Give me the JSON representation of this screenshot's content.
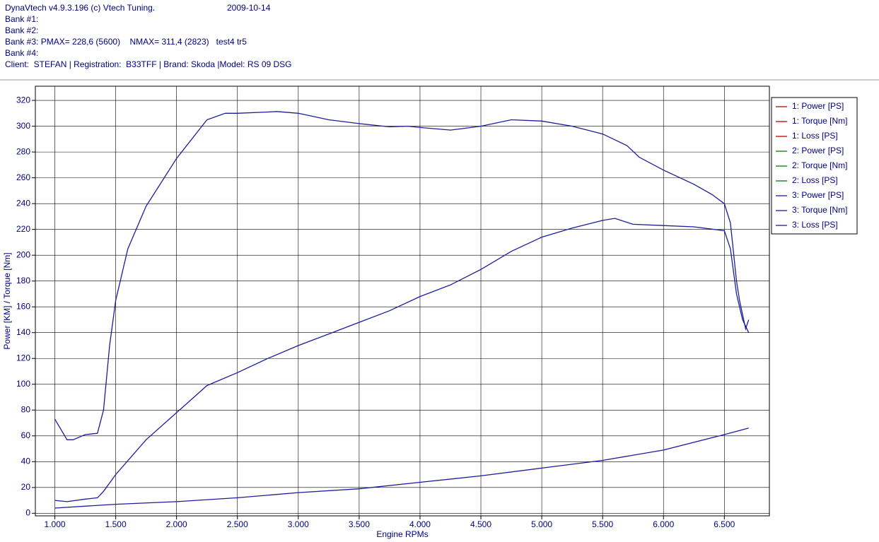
{
  "header": {
    "title": "DynaVtech v4.9.3.196 (c) Vtech Tuning.",
    "date": "2009-10-14",
    "lines": [
      "Bank #1:",
      "Bank #2:",
      "Bank #3: PMAX= 228,6 (5600)    NMAX= 311,4 (2823)   test4 tr5",
      "Bank #4:",
      "Client:  STEFAN | Registration:  B33TFF | Brand: Skoda |Model: RS 09 DSG"
    ]
  },
  "chart_data": {
    "type": "line",
    "x_label": "Engine RPMs",
    "y_label": "Power [KM] / Torque [Nm]",
    "xlim": [
      840,
      6870
    ],
    "ylim": [
      -2,
      331
    ],
    "xticks": [
      {
        "value": 1000,
        "label": "1.000"
      },
      {
        "value": 1500,
        "label": "1.500"
      },
      {
        "value": 2000,
        "label": "2.000"
      },
      {
        "value": 2500,
        "label": "2.500"
      },
      {
        "value": 3000,
        "label": "3.000"
      },
      {
        "value": 3500,
        "label": "3.500"
      },
      {
        "value": 4000,
        "label": "4.000"
      },
      {
        "value": 4500,
        "label": "4.500"
      },
      {
        "value": 5000,
        "label": "5.000"
      },
      {
        "value": 5500,
        "label": "5.500"
      },
      {
        "value": 6000,
        "label": "6.000"
      },
      {
        "value": 6500,
        "label": "6.500"
      }
    ],
    "yticks": [
      0,
      20,
      40,
      60,
      80,
      100,
      120,
      140,
      160,
      180,
      200,
      220,
      240,
      260,
      280,
      300,
      320
    ],
    "grid": true,
    "legend": "right",
    "series": [
      {
        "name": "1: Power [PS]",
        "color": "#c00000",
        "x": [],
        "values": []
      },
      {
        "name": "1: Torque [Nm]",
        "color": "#c00000",
        "x": [],
        "values": []
      },
      {
        "name": "1: Loss [PS]",
        "color": "#c00000",
        "x": [],
        "values": []
      },
      {
        "name": "2: Power [PS]",
        "color": "#008000",
        "x": [],
        "values": []
      },
      {
        "name": "2: Torque [Nm]",
        "color": "#008000",
        "x": [],
        "values": []
      },
      {
        "name": "2: Loss [PS]",
        "color": "#008000",
        "x": [],
        "values": []
      },
      {
        "name": "3: Power [PS]",
        "color": "#1c1c9c",
        "x": [
          1000,
          1100,
          1250,
          1350,
          1400,
          1500,
          1750,
          2000,
          2250,
          2500,
          2750,
          3000,
          3250,
          3500,
          3750,
          4000,
          4250,
          4500,
          4750,
          5000,
          5250,
          5500,
          5600,
          5750,
          6000,
          6250,
          6500,
          6550,
          6600,
          6650,
          6700
        ],
        "values": [
          10,
          9,
          11,
          12,
          17,
          30,
          57,
          78,
          99,
          109,
          120,
          130,
          139,
          148,
          157,
          168,
          177,
          189,
          203,
          214,
          221,
          227,
          228.6,
          224,
          223,
          222,
          219,
          205,
          170,
          150,
          140
        ]
      },
      {
        "name": "3: Torque [Nm]",
        "color": "#1c1c9c",
        "x": [
          1000,
          1100,
          1150,
          1250,
          1350,
          1400,
          1450,
          1500,
          1600,
          1750,
          2000,
          2250,
          2400,
          2500,
          2750,
          2823,
          3000,
          3250,
          3500,
          3750,
          3900,
          4000,
          4250,
          4500,
          4750,
          5000,
          5250,
          5500,
          5700,
          5800,
          6000,
          6250,
          6400,
          6500,
          6550,
          6600,
          6625,
          6675,
          6700
        ],
        "values": [
          73,
          57,
          57,
          61,
          62,
          80,
          130,
          165,
          205,
          238,
          275,
          305,
          310,
          310,
          311,
          311.4,
          310,
          305,
          302,
          299.5,
          300,
          299,
          297,
          300,
          305,
          304,
          300,
          294,
          285,
          276,
          266,
          255,
          247,
          240,
          225,
          180,
          165,
          143,
          150
        ]
      },
      {
        "name": "3: Loss [PS]",
        "color": "#1c1c9c",
        "x": [
          1000,
          1500,
          2000,
          2500,
          3000,
          3500,
          4000,
          4500,
          5000,
          5500,
          6000,
          6500,
          6700
        ],
        "values": [
          4,
          7,
          9,
          12,
          16,
          19,
          24,
          29,
          35,
          41,
          49,
          61,
          66
        ]
      }
    ]
  }
}
